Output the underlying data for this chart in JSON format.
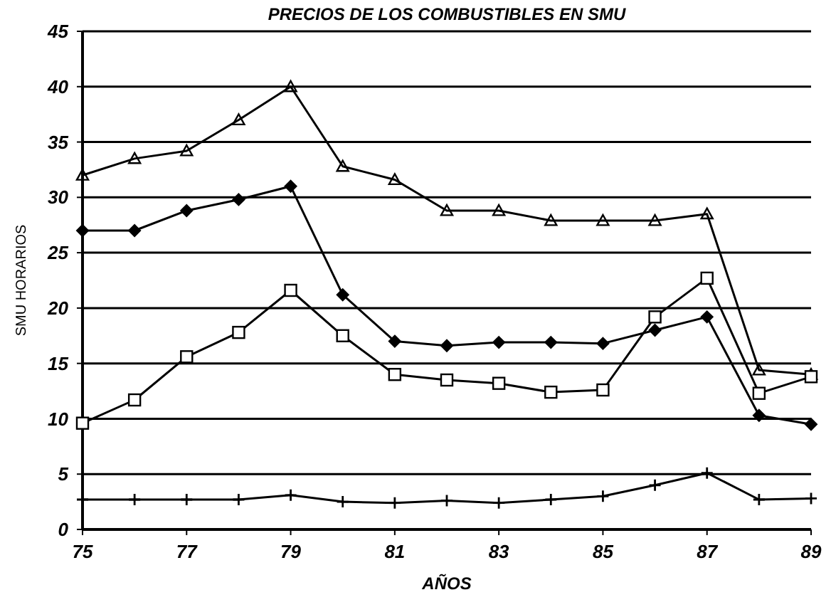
{
  "chart_data": {
    "type": "line",
    "title": "PRECIOS DE LOS COMBUSTIBLES EN SMU",
    "xlabel": "AÑOS",
    "ylabel": "SMU HORARIOS",
    "x": [
      75,
      76,
      77,
      78,
      79,
      80,
      81,
      82,
      83,
      84,
      85,
      86,
      87,
      88,
      89
    ],
    "series": [
      {
        "color": "#000000",
        "marker": "triangle",
        "values": [
          32,
          33.5,
          34.2,
          37,
          40,
          32.8,
          31.6,
          28.8,
          28.8,
          27.9,
          27.9,
          27.9,
          28.5,
          14.4,
          14
        ]
      },
      {
        "color": "#000000",
        "marker": "diamond",
        "values": [
          27,
          27,
          28.8,
          29.8,
          31,
          21.2,
          17,
          16.6,
          16.9,
          16.9,
          16.8,
          18,
          19.2,
          10.3,
          9.5
        ]
      },
      {
        "color": "#000000",
        "marker": "square",
        "values": [
          9.6,
          11.7,
          15.6,
          17.8,
          21.6,
          17.5,
          14,
          13.5,
          13.2,
          12.4,
          12.6,
          19.2,
          22.7,
          12.3,
          13.8
        ]
      },
      {
        "color": "#000000",
        "marker": "cross",
        "values": [
          2.7,
          2.7,
          2.7,
          2.7,
          3.1,
          2.5,
          2.4,
          2.6,
          2.4,
          2.7,
          3,
          4,
          5.1,
          2.7,
          2.8
        ]
      }
    ],
    "xlim": [
      75,
      89
    ],
    "xticks": [
      75,
      77,
      79,
      81,
      83,
      85,
      87,
      89
    ],
    "ylim": [
      0,
      45
    ],
    "yticks": [
      0,
      5,
      10,
      15,
      20,
      25,
      30,
      35,
      40,
      45
    ],
    "grid": "y",
    "line_style": "solid"
  }
}
